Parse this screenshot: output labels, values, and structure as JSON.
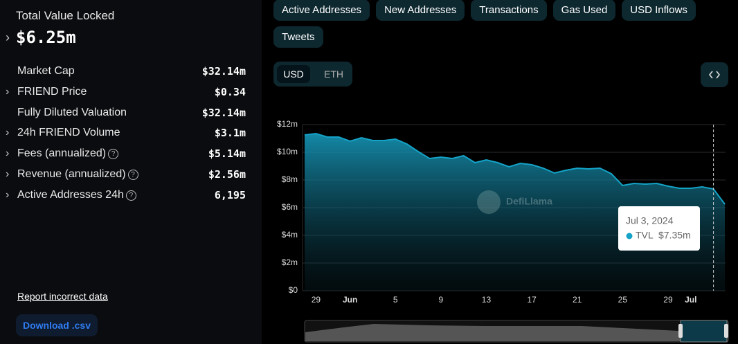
{
  "left_panel": {
    "tvl_label": "Total Value Locked",
    "tvl_value": "$6.25m",
    "metrics": [
      {
        "label": "Market Cap",
        "value": "$32.14m",
        "expandable": false,
        "info": false
      },
      {
        "label": "FRIEND Price",
        "value": "$0.34",
        "expandable": true,
        "info": false
      },
      {
        "label": "Fully Diluted Valuation",
        "value": "$32.14m",
        "expandable": false,
        "info": false
      },
      {
        "label": "24h FRIEND Volume",
        "value": "$3.1m",
        "expandable": true,
        "info": false
      },
      {
        "label": "Fees (annualized)",
        "value": "$5.14m",
        "expandable": true,
        "info": true
      },
      {
        "label": "Revenue (annualized)",
        "value": "$2.56m",
        "expandable": true,
        "info": true
      },
      {
        "label": "Active Addresses 24h",
        "value": "6,195",
        "expandable": true,
        "info": true
      }
    ],
    "report_link": "Report incorrect data",
    "download_button": "Download .csv"
  },
  "tabs": [
    "Active Addresses",
    "New Addresses",
    "Transactions",
    "Gas Used",
    "USD Inflows",
    "Tweets"
  ],
  "currency_toggle": {
    "options": [
      "USD",
      "ETH"
    ],
    "selected": "USD"
  },
  "watermark": "DefiLlama",
  "chart_data": {
    "type": "area",
    "categories": [
      null,
      "29",
      null,
      null,
      "Jun",
      null,
      null,
      null,
      "5",
      null,
      null,
      null,
      "9",
      null,
      null,
      null,
      "13",
      null,
      null,
      null,
      "17",
      null,
      null,
      null,
      "21",
      null,
      null,
      null,
      "25",
      null,
      null,
      null,
      "29",
      null,
      "Jul",
      null,
      null,
      null
    ],
    "series": [
      {
        "name": "TVL",
        "color": "#14a3c7",
        "values": [
          11.25,
          11.35,
          11.1,
          11.1,
          10.8,
          11.05,
          10.85,
          10.85,
          10.95,
          10.6,
          10.05,
          9.55,
          9.65,
          9.55,
          9.75,
          9.25,
          9.45,
          9.25,
          8.95,
          9.2,
          9.1,
          8.85,
          8.5,
          8.7,
          8.85,
          8.8,
          8.85,
          8.45,
          7.6,
          7.75,
          7.7,
          7.75,
          7.55,
          7.4,
          7.4,
          7.5,
          7.35,
          6.25
        ]
      }
    ],
    "ylim": [
      0,
      12
    ],
    "yticks": [
      {
        "value": 0,
        "label": "$0"
      },
      {
        "value": 2,
        "label": "$2m"
      },
      {
        "value": 4,
        "label": "$4m"
      },
      {
        "value": 6,
        "label": "$6m"
      },
      {
        "value": 8,
        "label": "$8m"
      },
      {
        "value": 10,
        "label": "$10m"
      },
      {
        "value": 12,
        "label": "$12m"
      }
    ],
    "grid": true,
    "tooltip": {
      "date": "Jul 3, 2024",
      "value": "$7.35m"
    }
  }
}
